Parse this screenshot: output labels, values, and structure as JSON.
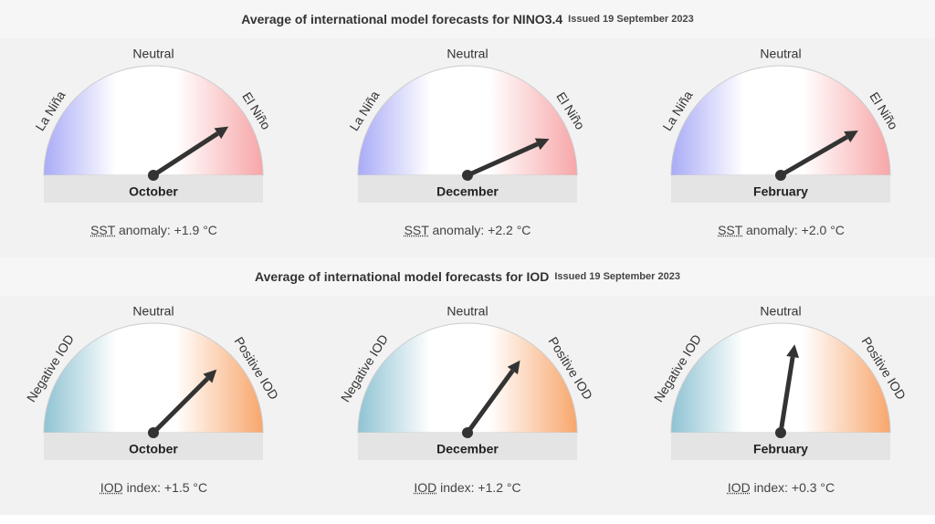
{
  "nino": {
    "title": "Average of international model forecasts for NINO3.4",
    "issued": "Issued 19 September 2023",
    "labels": {
      "left": "La Niña",
      "center": "Neutral",
      "right": "El Niño"
    },
    "colors": {
      "left": "#a9abf7",
      "right": "#f7a6a8"
    },
    "gauges": [
      {
        "month": "October",
        "abbr": "SST",
        "suffix": " anomaly: +1.9 °C",
        "value": 1.9
      },
      {
        "month": "December",
        "abbr": "SST",
        "suffix": " anomaly: +2.2 °C",
        "value": 2.2
      },
      {
        "month": "February",
        "abbr": "SST",
        "suffix": " anomaly: +2.0 °C",
        "value": 2.0
      }
    ]
  },
  "iod": {
    "title": "Average of international model forecasts for IOD",
    "issued": "Issued 19 September 2023",
    "labels": {
      "left": "Negative IOD",
      "center": "Neutral",
      "right": "Positive IOD"
    },
    "colors": {
      "left": "#8fc3d3",
      "right": "#f8a66c"
    },
    "gauges": [
      {
        "month": "October",
        "abbr": "IOD",
        "suffix": " index: +1.5 °C",
        "value": 1.5
      },
      {
        "month": "December",
        "abbr": "IOD",
        "suffix": " index: +1.2 °C",
        "value": 1.2
      },
      {
        "month": "February",
        "abbr": "IOD",
        "suffix": " index: +0.3 °C",
        "value": 0.3
      }
    ]
  }
}
